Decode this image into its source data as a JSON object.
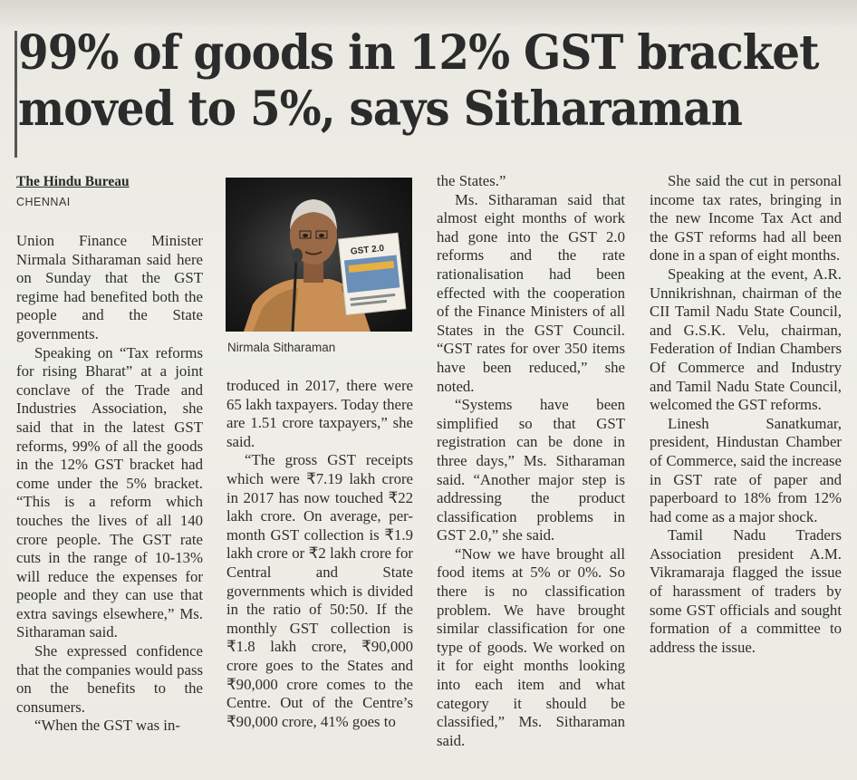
{
  "headline": {
    "line1": "99% of goods in 12% GST bracket",
    "line2": "moved to 5%, says Sitharaman"
  },
  "byline": "The Hindu Bureau",
  "dateline": "CHENNAI",
  "photo": {
    "caption": "Nirmala Sitharaman",
    "booklet_text": "GST 2.0"
  },
  "columns": {
    "col1": [
      "Union Finance Minister Nirmala Sitharaman said here on Sunday that the GST regime had benefited both the people and the State governments.",
      "Speaking on “Tax reforms for rising Bharat” at a joint conclave of the Trade and Industries Association, she said that in the latest GST reforms, 99% of all the goods in the 12% GST bracket had come under the 5% bracket. “This is a reform which touches the lives of all 140 crore people. The GST rate cuts in the range of 10-13% will reduce the expenses for people and they can use that extra savings elsewhere,” Ms. Sitharaman said.",
      "She expressed confidence that the companies would pass on the benefits to the consumers.",
      "“When the GST was in-"
    ],
    "col2": [
      "troduced in 2017, there were 65 lakh taxpayers. Today there are 1.51 crore taxpayers,” she said.",
      "“The gross GST receipts which were ₹7.19 lakh crore in 2017 has now touched ₹22 lakh crore. On average, per-month GST collection is ₹1.9 lakh crore or ₹2 lakh crore for Central and State governments which is divided in the ratio of 50:50. If the monthly GST collection is ₹1.8 lakh crore, ₹90,000 crore goes to the States and ₹90,000 crore comes to the Centre. Out of the Centre’s ₹90,000 crore, 41% goes to"
    ],
    "col3": [
      "the States.”",
      "Ms. Sitharaman said that almost eight months of work had gone into the GST 2.0 reforms and the rate rationalisation had been effected with the cooperation of the Finance Ministers of all States in the GST Council. “GST rates for over 350 items have been reduced,” she noted.",
      "“Systems have been simplified so that GST registration can be done in three days,” Ms. Sitharaman said. “Another major step is addressing the product classification problems in GST 2.0,” she said.",
      "“Now we have brought all food items at 5% or 0%. So there is no classification problem. We have brought similar classification for one type of goods. We worked on it for eight months looking into each item and what category it should be classified,” Ms. Sitharaman said."
    ],
    "col4": [
      "She said the cut in personal income tax rates, bringing in the new Income Tax Act and the GST reforms had all been done in a span of eight months.",
      "Speaking at the event, A.R. Unnikrishnan, chairman of the CII Tamil Nadu State Council, and G.S.K. Velu, chairman, Federation of Indian Chambers Of Commerce and Industry and Tamil Nadu State Council, welcomed the GST reforms.",
      "Linesh Sanatkumar, president, Hindustan Chamber of Commerce, said the increase in GST rate of paper and paperboard to 18% from 12% had come as a major shock.",
      "Tamil Nadu Traders Association president A.M. Vikramaraja flagged the issue of harassment of traders by some GST officials and sought formation of a committee to address the issue."
    ]
  }
}
